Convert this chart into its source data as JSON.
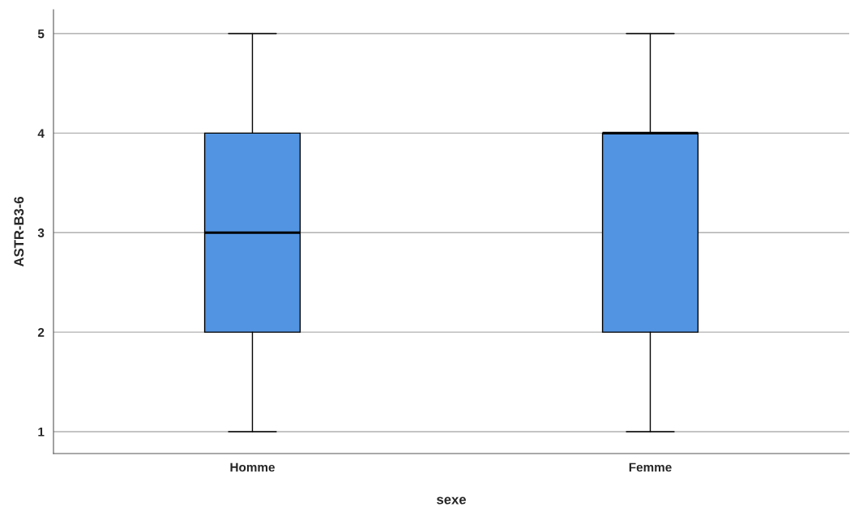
{
  "chart_data": {
    "type": "box",
    "xlabel": "sexe",
    "ylabel": "ASTR-B3-6",
    "categories": [
      "Homme",
      "Femme"
    ],
    "boxes": [
      {
        "low": 1,
        "q1": 2,
        "median": 3,
        "q3": 4,
        "high": 5
      },
      {
        "low": 1,
        "q1": 2,
        "median": 4,
        "q3": 4,
        "high": 5
      }
    ],
    "color": "#5294e2",
    "ylim": [
      0.78,
      5.24
    ],
    "yticks": [
      1,
      2,
      3,
      4,
      5
    ],
    "grid": "y"
  }
}
